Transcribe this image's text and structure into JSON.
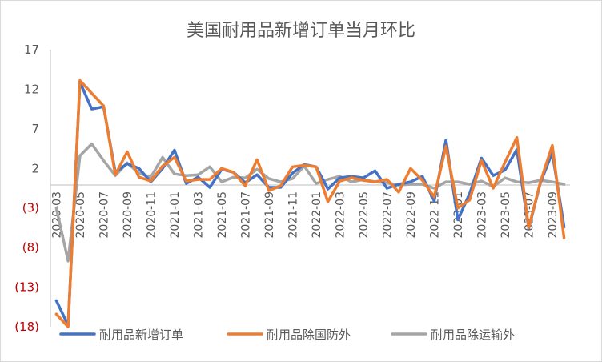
{
  "chart_data": {
    "type": "line",
    "title": "美国耐用品新增订单当月环比",
    "xlabel": "",
    "ylabel": "",
    "ylim": [
      -18,
      17
    ],
    "yticks": [
      17,
      12,
      7,
      2,
      -3,
      -8,
      -13,
      -18
    ],
    "ytick_labels": [
      "17",
      "12",
      "7",
      "2",
      "(3)",
      "(8)",
      "(13)",
      "(18)"
    ],
    "negative_tick_color": "#C00000",
    "positive_tick_color": "#595959",
    "grid": false,
    "legend_position": "bottom",
    "x": [
      "2020-03",
      "2020-04",
      "2020-05",
      "2020-06",
      "2020-07",
      "2020-08",
      "2020-09",
      "2020-10",
      "2020-11",
      "2020-12",
      "2021-01",
      "2021-02",
      "2021-03",
      "2021-04",
      "2021-05",
      "2021-06",
      "2021-07",
      "2021-08",
      "2021-09",
      "2021-10",
      "2021-11",
      "2021-12",
      "2022-01",
      "2022-02",
      "2022-03",
      "2022-04",
      "2022-05",
      "2022-06",
      "2022-07",
      "2022-08",
      "2022-09",
      "2022-10",
      "2022-11",
      "2022-12",
      "2023-01",
      "2023-02",
      "2023-03",
      "2023-04",
      "2023-05",
      "2023-06",
      "2023-07",
      "2023-08",
      "2023-09",
      "2023-10"
    ],
    "x_tick_labels": [
      "2020-03",
      "2020-05",
      "2020-07",
      "2020-09",
      "2020-11",
      "2021-01",
      "2021-03",
      "2021-05",
      "2021-07",
      "2021-09",
      "2021-11",
      "2022-01",
      "2022-03",
      "2022-05",
      "2022-07",
      "2022-09",
      "2022-11",
      "2023-01",
      "2023-03",
      "2023-05",
      "2023-07",
      "2023-09"
    ],
    "series": [
      {
        "name": "耐用品新增订单",
        "color": "#4472C4",
        "values": [
          -14.7,
          -17.8,
          12.9,
          9.5,
          9.8,
          1.5,
          2.6,
          2.0,
          0.3,
          2.0,
          4.3,
          0.1,
          0.9,
          -0.4,
          1.9,
          1.5,
          0.2,
          1.2,
          -0.4,
          -0.4,
          1.4,
          2.5,
          2.2,
          -0.6,
          0.8,
          1.0,
          0.8,
          1.7,
          -0.5,
          0.0,
          0.3,
          1.0,
          -2.1,
          5.6,
          -4.5,
          -1.2,
          3.3,
          1.1,
          1.8,
          4.4,
          -5.6,
          0.2,
          4.0,
          -5.4
        ]
      },
      {
        "name": "耐用品除国防外",
        "color": "#ED7D31",
        "values": [
          -16.4,
          -18.1,
          13.1,
          11.5,
          9.9,
          1.2,
          4.1,
          0.9,
          0.4,
          2.3,
          3.4,
          0.4,
          0.6,
          0.6,
          2.0,
          1.5,
          -0.2,
          3.1,
          -0.8,
          -0.2,
          2.2,
          2.4,
          2.2,
          -2.2,
          0.4,
          0.8,
          0.5,
          0.3,
          0.6,
          -1.0,
          2.0,
          0.5,
          -1.6,
          4.8,
          -3.0,
          -2.0,
          3.0,
          -0.5,
          2.8,
          5.9,
          -5.5,
          0.3,
          4.9,
          -6.8
        ]
      },
      {
        "name": "耐用品除运输外",
        "color": "#A5A5A5",
        "values": [
          -3.0,
          -9.7,
          3.6,
          5.1,
          3.0,
          1.1,
          2.7,
          1.4,
          0.9,
          3.4,
          1.3,
          1.1,
          1.2,
          2.2,
          0.3,
          0.9,
          0.8,
          1.9,
          0.7,
          0.3,
          0.7,
          2.3,
          0.1,
          0.6,
          1.0,
          0.3,
          0.6,
          0.3,
          0.2,
          -0.1,
          0.0,
          0.0,
          -0.5,
          0.3,
          0.3,
          0.0,
          0.4,
          -0.3,
          0.8,
          0.3,
          0.2,
          0.5,
          0.3,
          0.0
        ]
      }
    ]
  }
}
